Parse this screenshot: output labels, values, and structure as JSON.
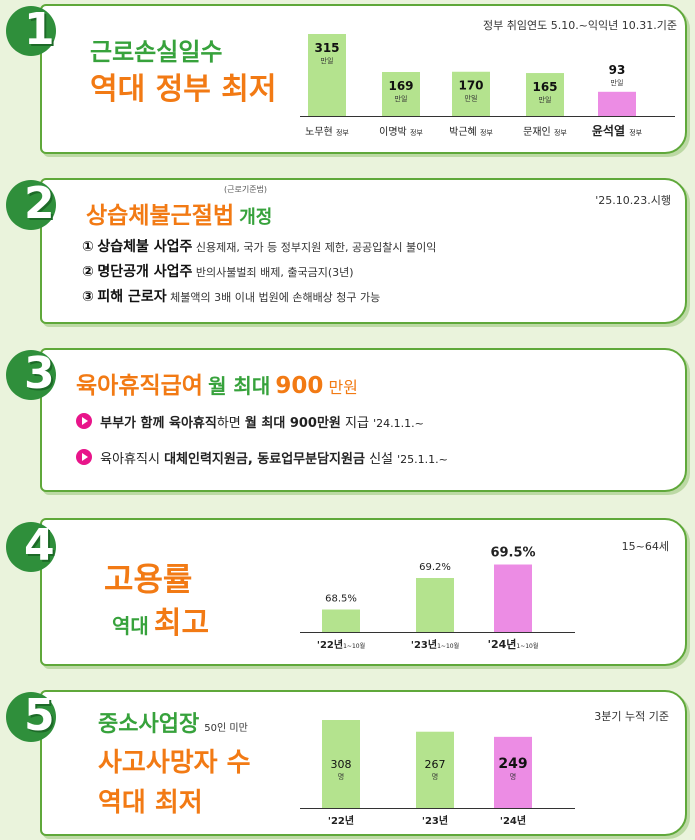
{
  "section1": {
    "num": "1",
    "title_line1": "근로손실일수",
    "title_line2": "역대 정부 최저",
    "note": "정부 취임연도 5.10.~익익년 10.31.기준"
  },
  "section2": {
    "num": "2",
    "title_small": "(근로기준법)",
    "title_main": "상습체불근절법",
    "title_suffix": "개정",
    "date": "'25.10.23.시행",
    "items": [
      {
        "marker": "①",
        "bold": "상습체불 사업주",
        "desc": "신용제재, 국가 등 정부지원 제한, 공공입찰시 불이익"
      },
      {
        "marker": "②",
        "bold": "명단공개 사업주",
        "desc": "반의사불벌죄 배제, 출국금지(3년)"
      },
      {
        "marker": "③",
        "bold": "피해 근로자",
        "desc": "체불액의 3배 이내 법원에 손해배상 청구 가능"
      }
    ]
  },
  "section3": {
    "num": "3",
    "title_main": "육아휴직급여",
    "title_mid": "월 최대",
    "title_value": "900",
    "title_unit": "만원",
    "line1": {
      "b1": "부부가 함께 육아휴직",
      "t1": "하면",
      "b2": "월 최대 900만원",
      "t2": "지급",
      "date": "'24.1.1.~"
    },
    "line2": {
      "t1": "육아휴직시",
      "b1": "대체인력지원금, 동료업무분담지원금",
      "t2": "신설",
      "date": "'25.1.1.~"
    }
  },
  "section4": {
    "num": "4",
    "title_line1": "고용률",
    "title_line2a": "역대",
    "title_line2b": "최고",
    "note": "15~64세"
  },
  "section5": {
    "num": "5",
    "title_line1": "중소사업장",
    "title_line1_small": "50인 미만",
    "title_line2": "사고사망자 수",
    "title_line3": "역대 최저",
    "note": "3분기 누적 기준"
  },
  "chart_data": [
    {
      "type": "bar",
      "categories": [
        "노무현 정부",
        "이명박 정부",
        "박근혜 정부",
        "문재인 정부",
        "윤석열 정부"
      ],
      "category_names": [
        "노무현",
        "이명박",
        "박근혜",
        "문재인",
        "윤석열"
      ],
      "category_suffix": "정부",
      "values": [
        315,
        169,
        170,
        165,
        93
      ],
      "value_labels": [
        "315",
        "169",
        "170",
        "165",
        "93"
      ],
      "unit": "만일",
      "highlight_index": 4,
      "colors": {
        "normal": "#b4e38e",
        "highlight": "#ec8ce4"
      }
    },
    {
      "type": "bar",
      "categories": [
        "'22년 1~10월",
        "'23년 1~10월",
        "'24년 1~10월"
      ],
      "category_years": [
        "'22년",
        "'23년",
        "'24년"
      ],
      "category_suffix": "1~10월",
      "values": [
        68.5,
        69.2,
        69.5
      ],
      "value_labels": [
        "68.5%",
        "69.2%",
        "69.5%"
      ],
      "highlight_index": 2,
      "colors": {
        "normal": "#b4e38e",
        "highlight": "#ec8ce4"
      }
    },
    {
      "type": "bar",
      "categories": [
        "'22년",
        "'23년",
        "'24년"
      ],
      "values": [
        308,
        267,
        249
      ],
      "value_labels": [
        "308",
        "267",
        "249"
      ],
      "unit": "명",
      "highlight_index": 2,
      "colors": {
        "normal": "#b4e38e",
        "highlight": "#ec8ce4"
      }
    }
  ]
}
